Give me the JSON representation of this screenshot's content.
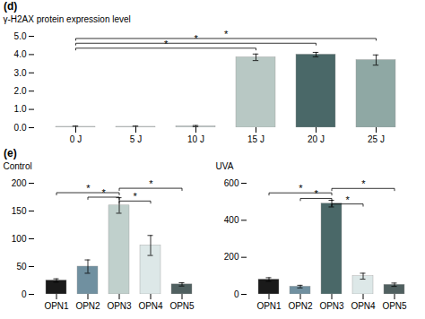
{
  "chart_data": [
    {
      "type": "bar",
      "title": "(d)",
      "categories": [
        "0 J",
        "5 J",
        "10 J",
        "15 J",
        "20 J",
        "25 J"
      ],
      "values": [
        0.05,
        0.05,
        0.08,
        3.85,
        4.0,
        3.7
      ],
      "errors": [
        0.04,
        0.04,
        0.04,
        0.18,
        0.12,
        0.28
      ],
      "colors": [
        "#c0c8c8",
        "#c0c8c8",
        "#c0c8c8",
        "#b8c8c4",
        "#4a6868",
        "#8fa8a4"
      ],
      "ylabel": "γ-H2AX protein expression level",
      "ylim": [
        0,
        5
      ],
      "yticks": [
        0,
        1,
        2,
        3,
        4,
        5
      ],
      "annotations": [
        {
          "text": "*",
          "x1": "0 J",
          "x2": "15 J",
          "y": 4.35
        },
        {
          "text": "*",
          "x1": "0 J",
          "x2": "20 J",
          "y": 4.62
        },
        {
          "text": "*",
          "x1": "0 J",
          "x2": "25 J",
          "y": 4.88
        }
      ]
    },
    {
      "type": "bar",
      "title": "(e)",
      "categories": [
        "OPN1",
        "OPN2",
        "OPN3",
        "OPN4",
        "OPN5"
      ],
      "values": [
        25,
        50,
        160,
        88,
        18
      ],
      "errors": [
        3,
        12,
        14,
        18,
        3
      ],
      "colors": [
        "#1a1a1a",
        "#7090a0",
        "#c0d0cc",
        "#dde8e8",
        "#506060"
      ],
      "ylabel": "Control",
      "ylim": [
        0,
        200
      ],
      "yticks": [
        0,
        50,
        100,
        150,
        200
      ],
      "annotations": [
        {
          "text": "*",
          "x1": "OPN1",
          "x2": "OPN3",
          "y": 183
        },
        {
          "text": "*",
          "x1": "OPN2",
          "x2": "OPN3",
          "y": 175
        },
        {
          "text": "*",
          "x1": "OPN3",
          "x2": "OPN4",
          "y": 168
        },
        {
          "text": "*",
          "x1": "OPN3",
          "x2": "OPN5",
          "y": 191
        }
      ]
    },
    {
      "type": "bar",
      "categories": [
        "OPN1",
        "OPN2",
        "OPN3",
        "OPN4",
        "OPN5"
      ],
      "values": [
        80,
        42,
        490,
        98,
        52
      ],
      "errors": [
        10,
        7,
        18,
        16,
        9
      ],
      "colors": [
        "#1a1a1a",
        "#7090a0",
        "#4a6868",
        "#dde8e8",
        "#506060"
      ],
      "ylabel": "UVA",
      "ylim": [
        0,
        600
      ],
      "yticks": [
        0,
        200,
        400,
        600
      ],
      "annotations": [
        {
          "text": "*",
          "x1": "OPN1",
          "x2": "OPN3",
          "y": 548
        },
        {
          "text": "*",
          "x1": "OPN2",
          "x2": "OPN3",
          "y": 518
        },
        {
          "text": "*",
          "x1": "OPN3",
          "x2": "OPN4",
          "y": 488
        },
        {
          "text": "*",
          "x1": "OPN3",
          "x2": "OPN5",
          "y": 572
        }
      ]
    }
  ]
}
